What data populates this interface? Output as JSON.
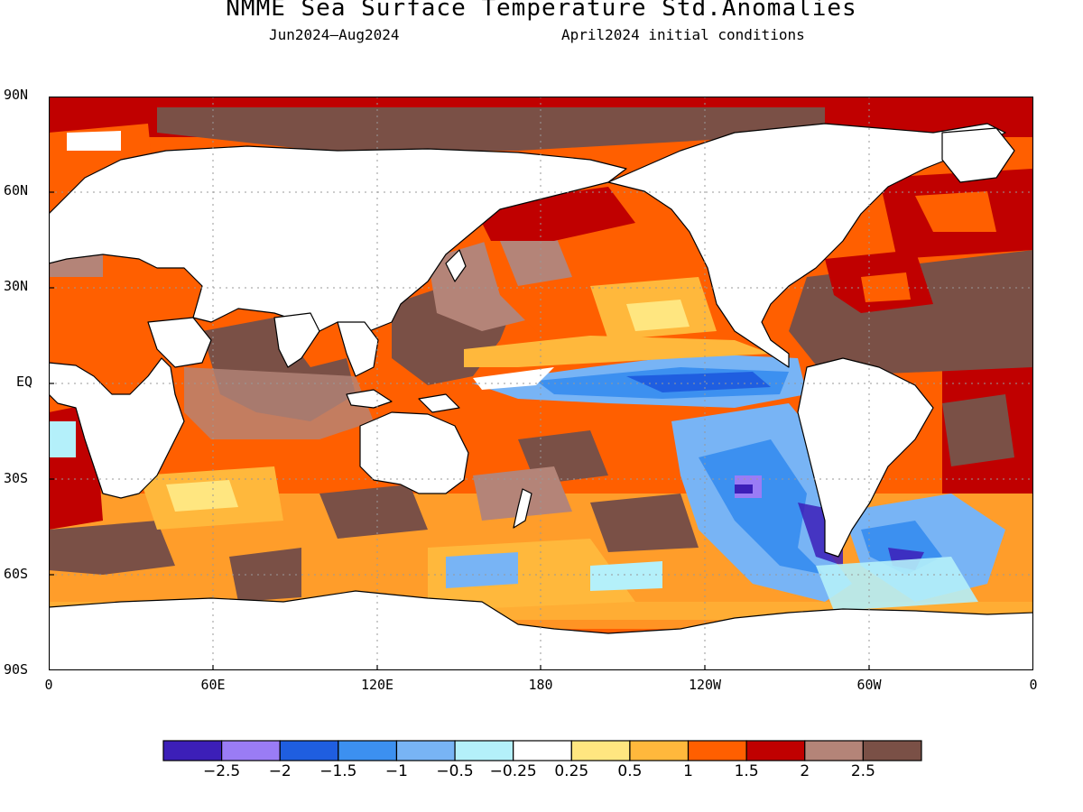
{
  "title": "NMME Sea Surface Temperature Std.Anomalies",
  "subtitle_left": "Jun2024—Aug2024",
  "subtitle_right": "April2024 initial conditions",
  "lat_labels": [
    "90N",
    "60N",
    "30N",
    "EQ",
    "30S",
    "60S",
    "90S"
  ],
  "lon_labels": [
    "0",
    "60E",
    "120E",
    "180",
    "120W",
    "60W",
    "0"
  ],
  "colorbar": {
    "colors": [
      "#3c1fb8",
      "#9a7cf5",
      "#1f5ee0",
      "#3c90f0",
      "#78b4f5",
      "#b4f0fa",
      "#ffffff",
      "#ffe680",
      "#ffb83c",
      "#ff5f00",
      "#c00000",
      "#b48478",
      "#7a5046"
    ],
    "labels": [
      "−2.5",
      "−2",
      "−1.5",
      "−1",
      "−0.5",
      "−0.25",
      "0.25",
      "0.5",
      "1",
      "1.5",
      "2",
      "2.5"
    ]
  },
  "colors": {
    "land": "#ffffff",
    "coast": "#000000",
    "grid": "#999999"
  }
}
